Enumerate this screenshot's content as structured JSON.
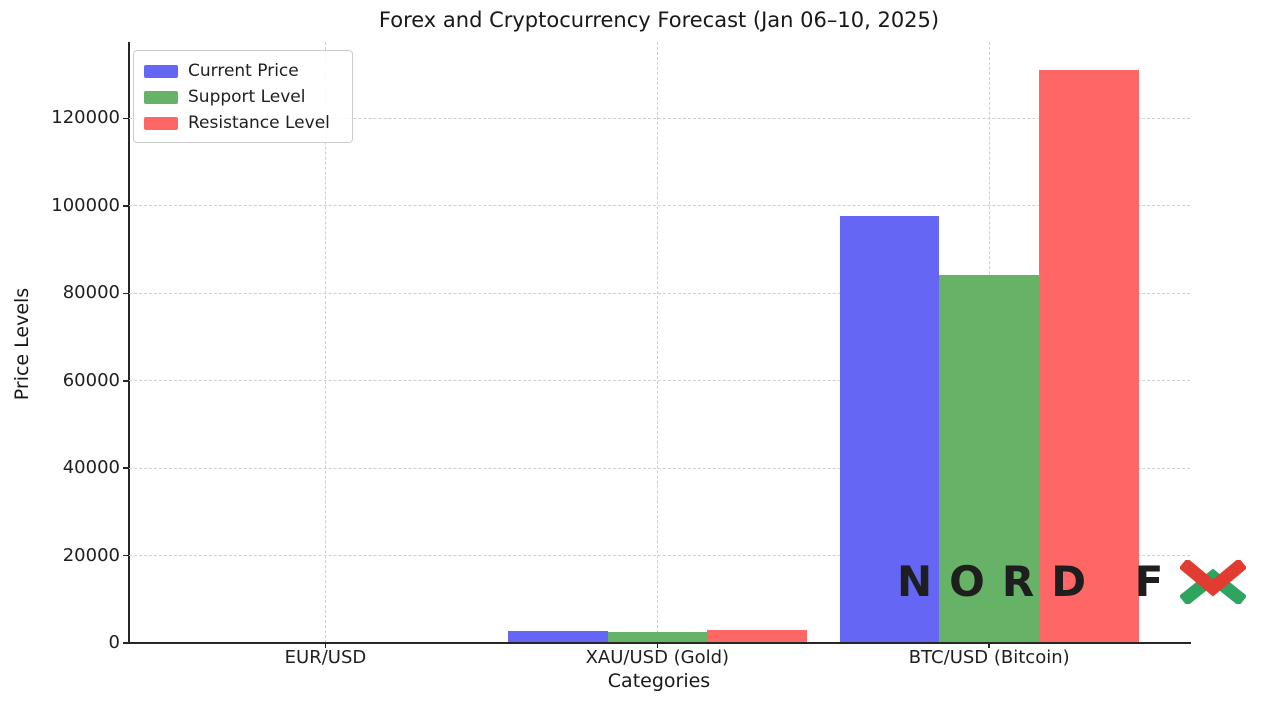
{
  "chart_data": {
    "type": "bar",
    "title": "Forex and Cryptocurrency Forecast (Jan 06–10, 2025)",
    "xlabel": "Categories",
    "ylabel": "Price Levels",
    "categories": [
      "EUR/USD",
      "XAU/USD (Gold)",
      "BTC/USD (Bitcoin)"
    ],
    "series": [
      {
        "name": "Current Price",
        "color": "#6666F5",
        "values": [
          1.03,
          2650,
          97700
        ]
      },
      {
        "name": "Support Level",
        "color": "#66B266",
        "values": [
          1.02,
          2600,
          84200
        ]
      },
      {
        "name": "Resistance Level",
        "color": "#FF6666",
        "values": [
          1.05,
          2900,
          131000
        ]
      }
    ],
    "ylim": [
      0,
      137500
    ],
    "y_ticks": [
      0,
      20000,
      40000,
      60000,
      80000,
      100000,
      120000
    ],
    "grid": true,
    "legend_position": "upper left"
  },
  "watermark": {
    "text": "NORD F",
    "letters_color": "#1E1E1E",
    "x_top_color": "#E23B31",
    "x_bottom_color": "#2FA360"
  }
}
